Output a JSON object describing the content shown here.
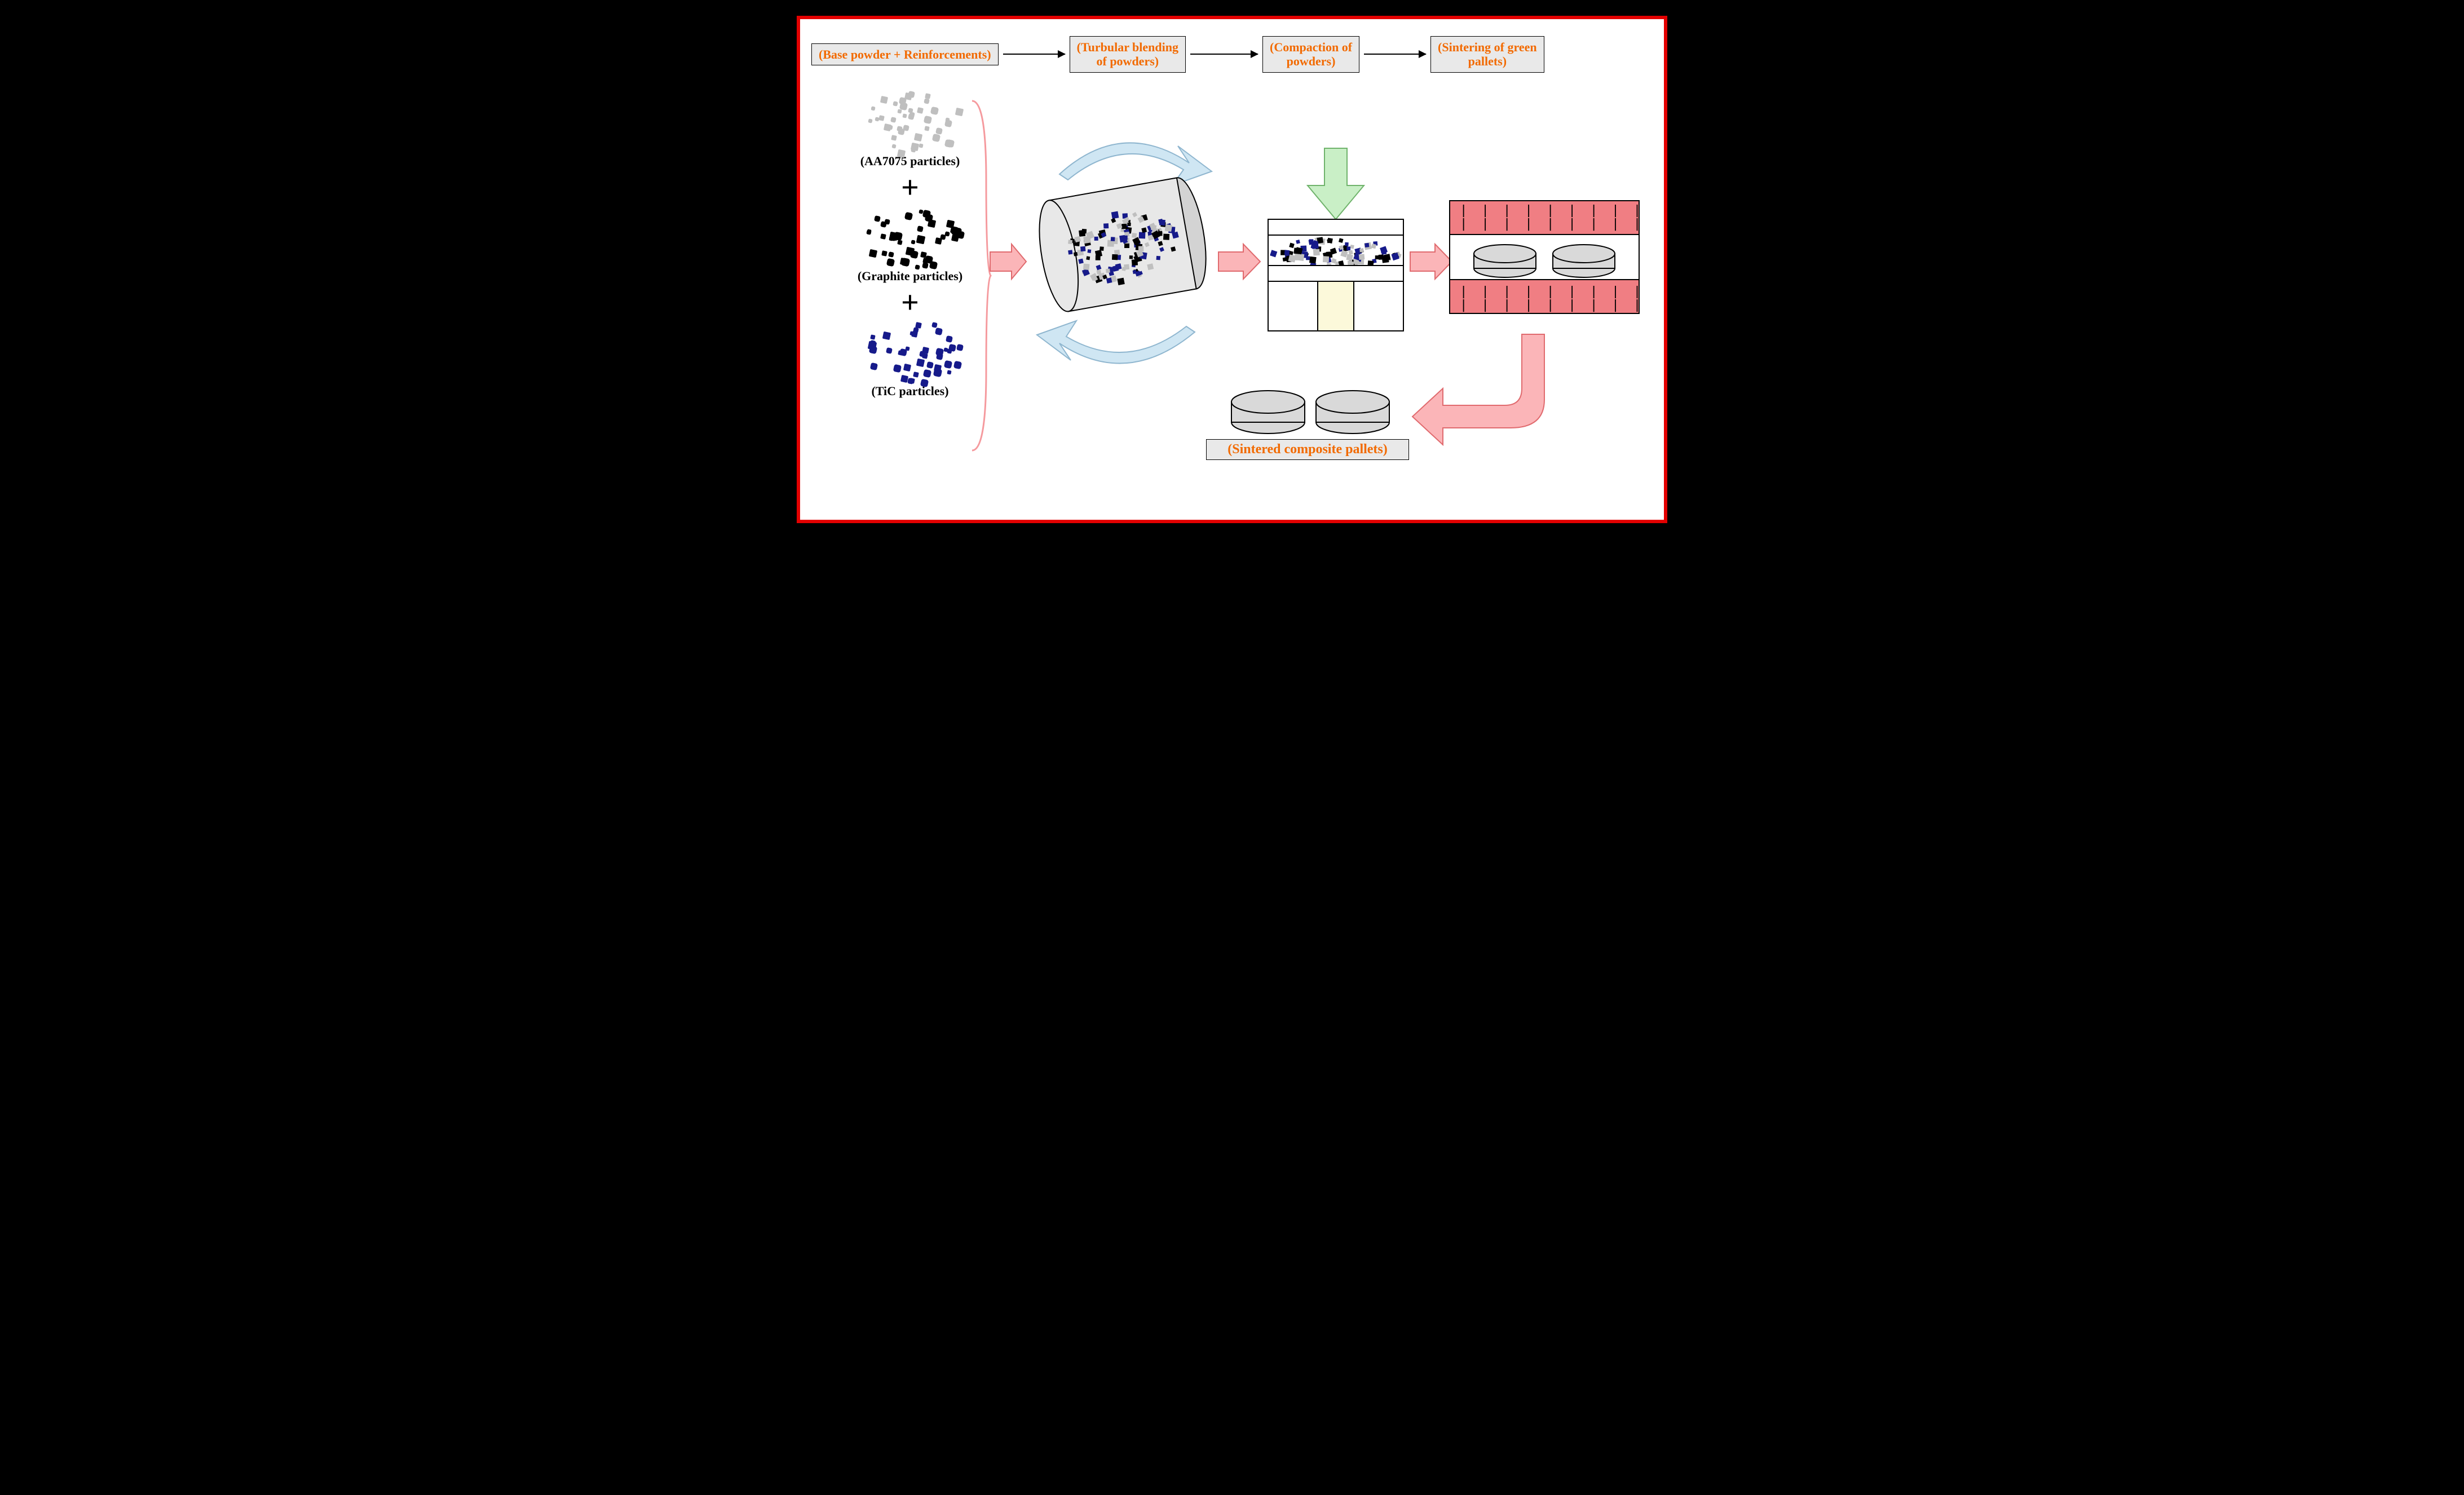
{
  "process": {
    "steps": [
      "(Base powder + Reinforcements)",
      "(Turbular blending\nof powders)",
      "(Compaction of\npowders)",
      "(Sintering of green\npallets)"
    ],
    "box_bg": "#e9e9e9",
    "box_text_color": "#f26a00",
    "box_border": "#000000",
    "arrow_color": "#000000"
  },
  "particles": {
    "items": [
      {
        "label": "(AA7075 particles)",
        "color": "#bfbfbf"
      },
      {
        "label": "(Graphite particles)",
        "color": "#000000"
      },
      {
        "label": "(TiC particles)",
        "color": "#161a8a"
      }
    ],
    "plus_color": "#000000",
    "label_color": "#000000",
    "label_fontsize": 22
  },
  "bracket": {
    "stroke": "#f59a9e",
    "width": 3
  },
  "flow_arrows": {
    "fill": "#fbb5b8",
    "stroke": "#e06a6e",
    "stroke_width": 2
  },
  "swirl_arrows": {
    "fill": "#cfe6f3",
    "stroke": "#8fb6cf",
    "stroke_width": 2
  },
  "press_arrow": {
    "fill": "#c9efc6",
    "stroke": "#6fb36b",
    "stroke_width": 2
  },
  "blender": {
    "body_fill": "#e8e8e8",
    "end_fill": "#d3d3d3",
    "stroke": "#000000",
    "mix_colors": [
      "#bfbfbf",
      "#000000",
      "#161a8a"
    ]
  },
  "die": {
    "plate_fill": "#ffffff",
    "plunger_fill": "#fcf9da",
    "stroke": "#000000",
    "mix_colors": [
      "#bfbfbf",
      "#000000",
      "#161a8a"
    ]
  },
  "furnace": {
    "body_fill": "#f07e83",
    "slot_fill": "#ffffff",
    "stroke": "#000000",
    "heater_dash_color": "#000000",
    "pellet_fill": "#d9d9d9"
  },
  "output": {
    "label": "(Sintered composite pallets)",
    "pellet_fill": "#d9d9d9"
  },
  "frame": {
    "border": "#e30000",
    "background": "#ffffff",
    "outer_bg": "#000000"
  },
  "type": "flowchart"
}
